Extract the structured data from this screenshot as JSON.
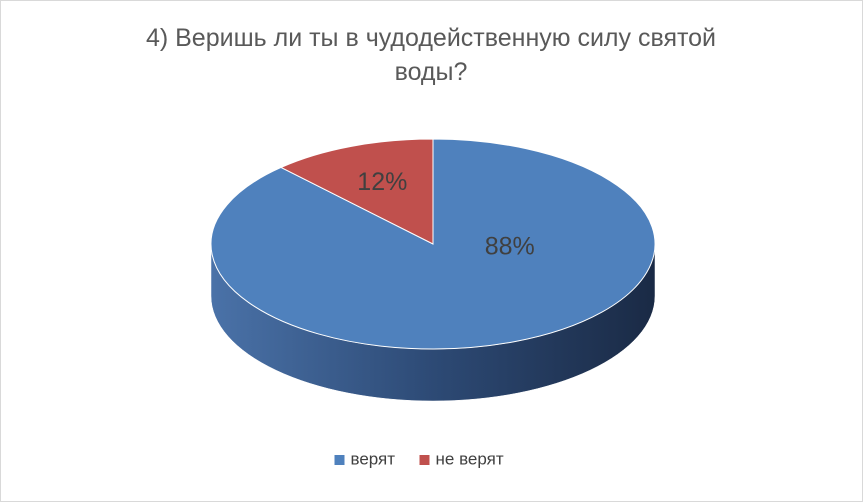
{
  "chart_data": {
    "type": "pie",
    "title": "4) Веришь ли ты в чудодейственную силу святой воды?",
    "categories": [
      "верят",
      "не верят"
    ],
    "values": [
      88,
      12
    ],
    "value_labels": [
      "88%",
      "12%"
    ],
    "colors": [
      "#4f81bd",
      "#c0504d"
    ],
    "legend": "bottom"
  }
}
